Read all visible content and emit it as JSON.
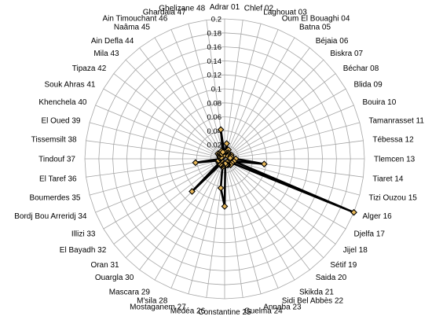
{
  "chart_data": {
    "type": "radar",
    "title": "",
    "categories": [
      "Adrar 01",
      "Chlef 02",
      "Laghouat 03",
      "Oum El Bouaghi 04",
      "Batna 05",
      "Béjaia 06",
      "Biskra 07",
      "Béchar 08",
      "Blida 09",
      "Bouira 10",
      "Tamanrasset 11",
      "Tébessa 12",
      "Tlemcen 13",
      "Tiaret 14",
      "Tizi Ouzou 15",
      "Alger 16",
      "Djelfa 17",
      "Jijel 18",
      "Sétif 19",
      "Saida 20",
      "Skikda 21",
      "Sidi Bel Abbès 22",
      "Annaba 23",
      "Guelma 24",
      "Constantine 25",
      "Médéa 26",
      "Mostaganem 27",
      "M'sila 28",
      "Mascara 29",
      "Ouargla 30",
      "Oran 31",
      "El Bayadh 32",
      "Illizi  33",
      "Bordj Bou Arreridj 34",
      "Boumerdes 35",
      "El Taref 36",
      "Tindouf 37",
      "Tissemsilt 38",
      "El Oued 39",
      "Khenchela 40",
      "Souk Ahras 41",
      "Tipaza 42",
      "Mila 43",
      "Ain Defla 44",
      "Naâma 45",
      "Ain Timouchant  46",
      "Ghardaia 47",
      "Ghelizane 48"
    ],
    "series": [
      {
        "values": [
          0.005,
          0.022,
          0.012,
          0.014,
          0.01,
          0.008,
          0.008,
          0.006,
          0.011,
          0.009,
          0.01,
          0.008,
          0.016,
          0.057,
          0.014,
          0.2,
          0.012,
          0.006,
          0.012,
          0.006,
          0.01,
          0.009,
          0.009,
          0.007,
          0.068,
          0.042,
          0.012,
          0.01,
          0.009,
          0.01,
          0.066,
          0.01,
          0.005,
          0.01,
          0.009,
          0.042,
          0.006,
          0.005,
          0.007,
          0.005,
          0.009,
          0.012,
          0.01,
          0.01,
          0.008,
          0.012,
          0.01,
          0.042
        ]
      }
    ],
    "rlim": [
      0,
      0.2
    ],
    "ticks": [
      "0",
      "0.02",
      "0.04",
      "0.06",
      "0.08",
      "0.1",
      "0.12",
      "0.14",
      "0.16",
      "0.18",
      "0.2"
    ],
    "grid": true,
    "colors": {
      "line": "#000000",
      "marker_fill": "#e8b85a",
      "marker_edge": "#000000",
      "grid": "#a6a6a6"
    }
  }
}
